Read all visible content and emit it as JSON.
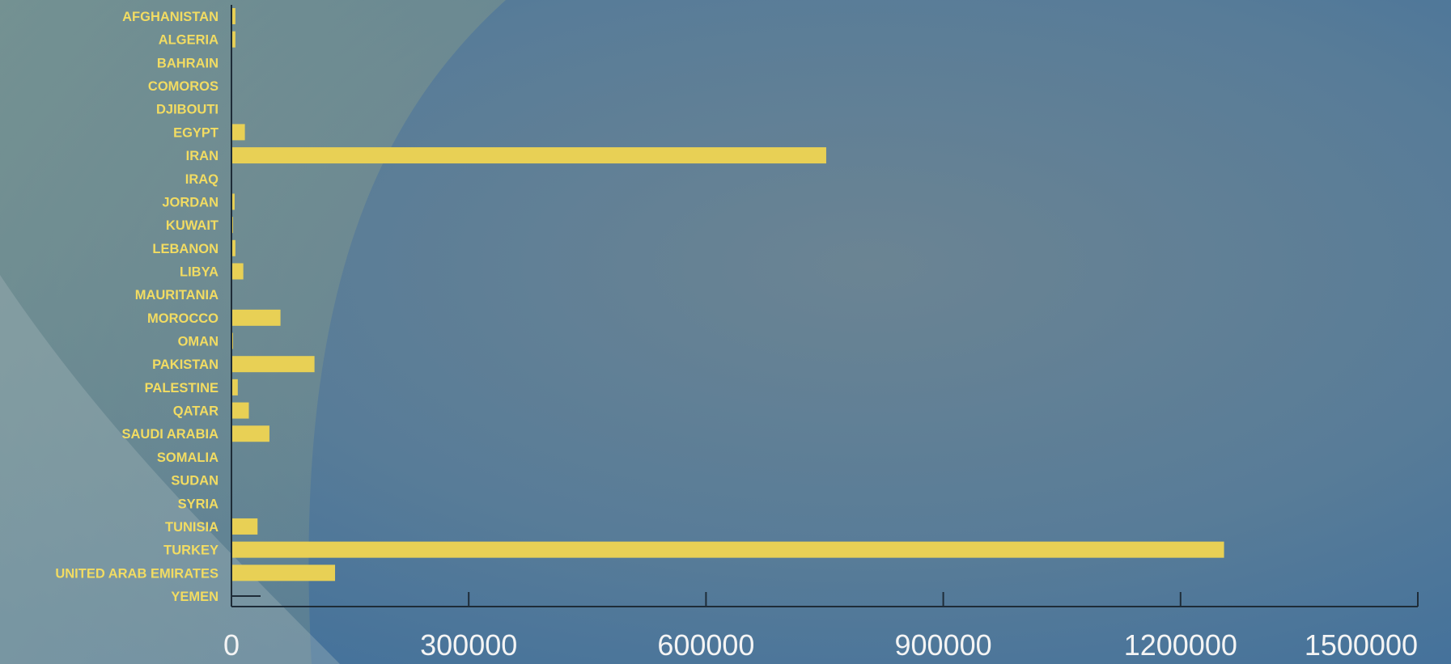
{
  "chart_data": {
    "type": "bar",
    "orientation": "horizontal",
    "title": "",
    "xlabel": "",
    "ylabel": "",
    "categories": [
      "AFGHANISTAN",
      "ALGERIA",
      "BAHRAIN",
      "COMOROS",
      "DJIBOUTI",
      "EGYPT",
      "IRAN",
      "IRAQ",
      "JORDAN",
      "KUWAIT",
      "LEBANON",
      "LIBYA",
      "MAURITANIA",
      "MOROCCO",
      "OMAN",
      "PAKISTAN",
      "PALESTINE",
      "QATAR",
      "SAUDI ARABIA",
      "SOMALIA",
      "SUDAN",
      "SYRIA",
      "TUNISIA",
      "TURKEY",
      "UNITED ARAB EMIRATES",
      "YEMEN"
    ],
    "values": [
      5000,
      5000,
      0,
      0,
      0,
      17000,
      752000,
      0,
      4000,
      2000,
      5000,
      15000,
      0,
      62000,
      2000,
      105000,
      8000,
      22000,
      48000,
      0,
      0,
      0,
      33000,
      1255000,
      131000,
      0
    ],
    "xlim": [
      0,
      1500000
    ],
    "xticks": [
      0,
      300000,
      600000,
      900000,
      1200000,
      1500000
    ],
    "xtick_labels": [
      "0",
      "300000",
      "600000",
      "900000",
      "1200000",
      "1500000"
    ],
    "grid": false,
    "bar_color": "#e8d055",
    "axis_color": "#1e2c38",
    "label_color": "#f2dc62",
    "tick_label_color": "#f4f4f4",
    "background_color": "#4f7596"
  }
}
